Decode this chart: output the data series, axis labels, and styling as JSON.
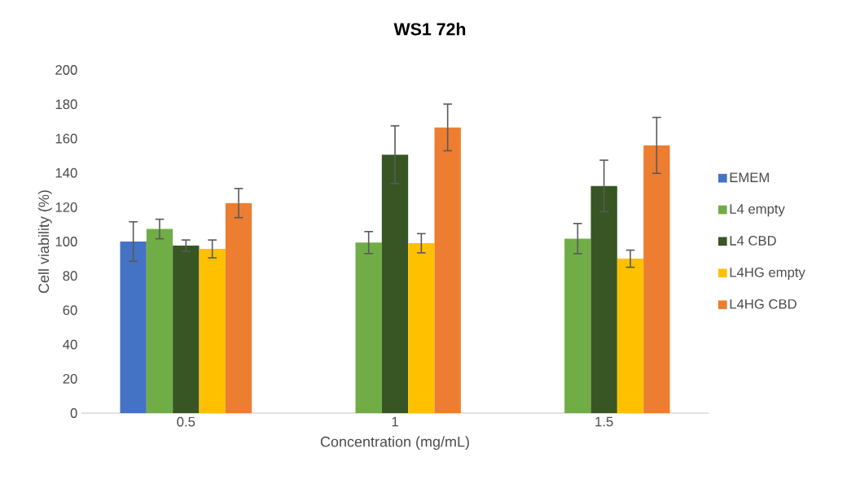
{
  "chart_data": {
    "type": "bar",
    "title": "WS1 72h",
    "xlabel": "Concentration (mg/mL)",
    "ylabel": "Cell viability (%)",
    "categories": [
      "0.5",
      "1",
      "1.5"
    ],
    "series": [
      {
        "name": "EMEM",
        "color": "#4472c4",
        "values": [
          100,
          null,
          null
        ],
        "errors": [
          11.5,
          null,
          null
        ]
      },
      {
        "name": "L4 empty",
        "color": "#70ad47",
        "values": [
          107.3,
          99.4,
          101.7
        ],
        "errors": [
          5.7,
          6.4,
          8.8
        ]
      },
      {
        "name": "L4 CBD",
        "color": "#375623",
        "values": [
          97.6,
          150.6,
          132.4
        ],
        "errors": [
          3.3,
          16.8,
          15
        ]
      },
      {
        "name": "L4HG empty",
        "color": "#ffc000",
        "values": [
          95.7,
          99,
          90
        ],
        "errors": [
          5.2,
          5.6,
          5
        ]
      },
      {
        "name": "L4HG CBD",
        "color": "#ed7d31",
        "values": [
          122.4,
          166.5,
          156
        ],
        "errors": [
          8.5,
          13.6,
          16.3
        ]
      }
    ],
    "ylim": [
      0,
      200
    ],
    "yticks": [
      0,
      20,
      40,
      60,
      80,
      100,
      120,
      140,
      160,
      180,
      200
    ],
    "legend": "right"
  }
}
